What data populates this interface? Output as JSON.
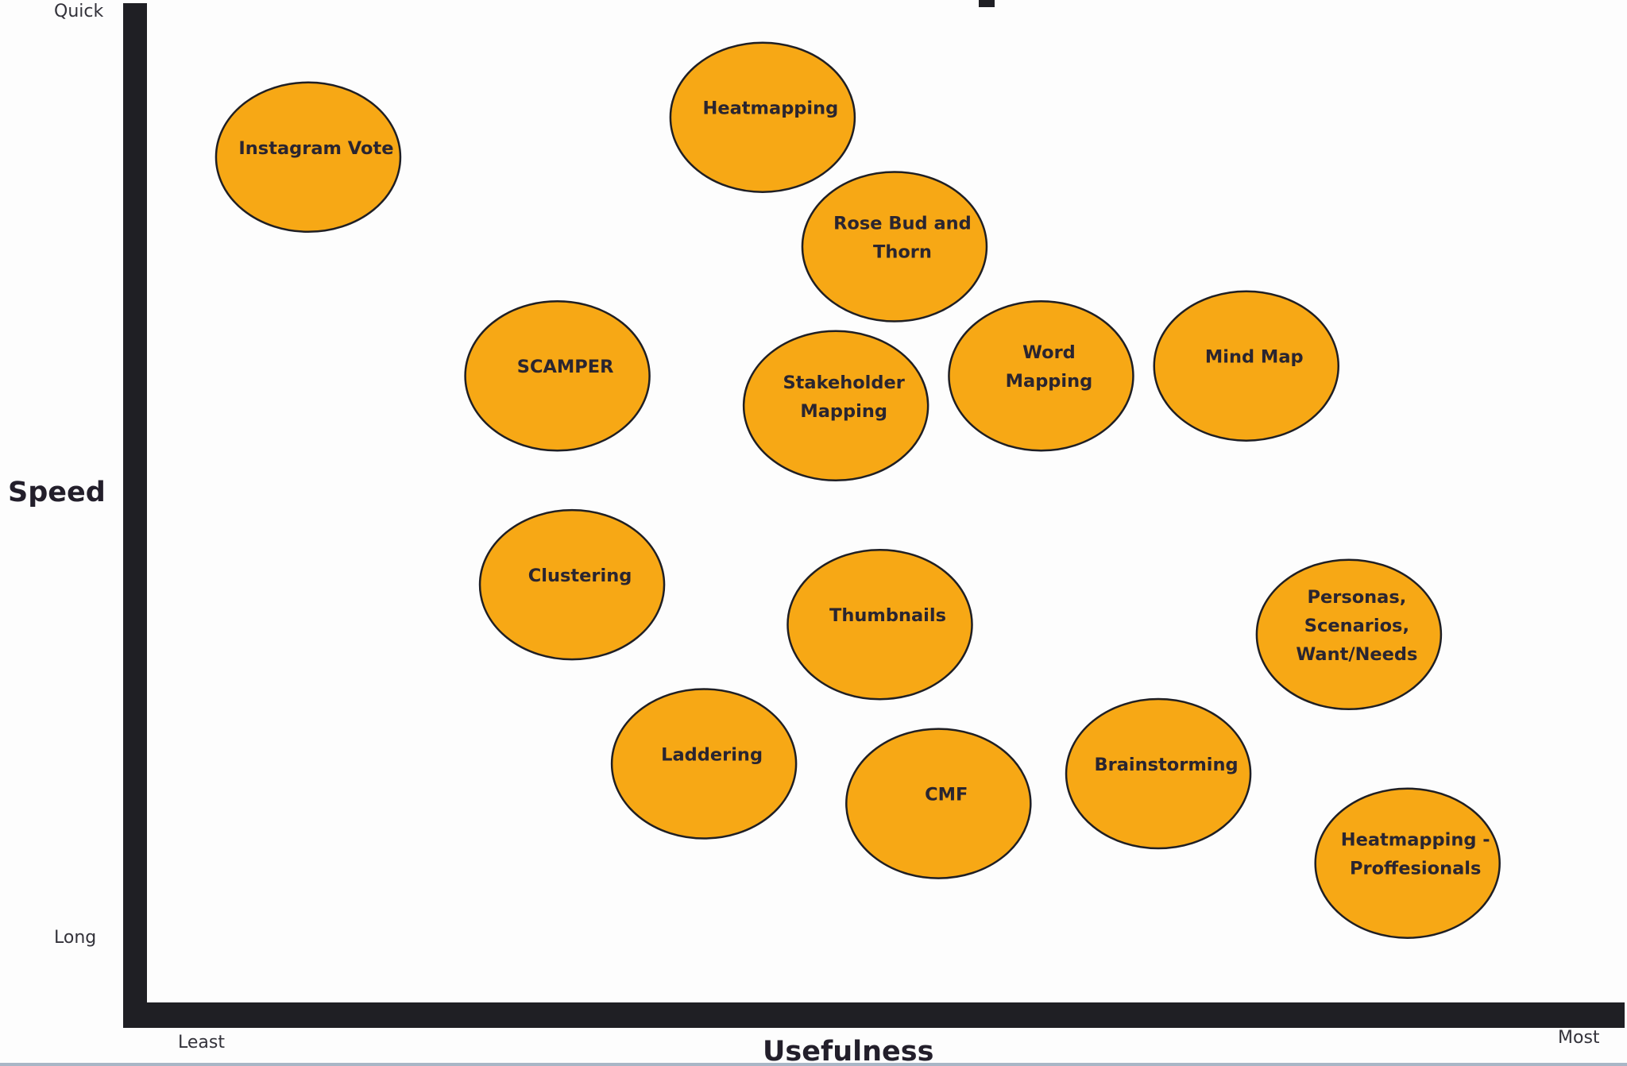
{
  "chart_data": {
    "type": "scatter",
    "xlabel": "Usefulness",
    "ylabel": "Speed",
    "x_ends": {
      "min_label": "Least",
      "max_label": "Most"
    },
    "y_ends": {
      "max_label": "Quick",
      "min_label": "Long"
    },
    "xlim": [
      0,
      100
    ],
    "ylim": [
      0,
      100
    ],
    "colors": {
      "bubble": "#f7a815",
      "outline": "#1f1f24",
      "axis": "#1f1f24",
      "text": "#2a2530"
    },
    "points": [
      {
        "label": [
          "Instagram Vote"
        ],
        "x": 11,
        "y": 85
      },
      {
        "label": [
          "Heatmapping"
        ],
        "x": 42,
        "y": 89
      },
      {
        "label": [
          "Rose Bud and",
          "Thorn"
        ],
        "x": 51,
        "y": 76
      },
      {
        "label": [
          "SCAMPER"
        ],
        "x": 28,
        "y": 63
      },
      {
        "label": [
          "Stakeholder",
          "Mapping"
        ],
        "x": 47,
        "y": 60
      },
      {
        "label": [
          "Word",
          "Mapping"
        ],
        "x": 61,
        "y": 63
      },
      {
        "label": [
          "Mind Map"
        ],
        "x": 75,
        "y": 64
      },
      {
        "label": [
          "Clustering"
        ],
        "x": 29,
        "y": 42
      },
      {
        "label": [
          "Thumbnails"
        ],
        "x": 50,
        "y": 38
      },
      {
        "label": [
          "Personas,",
          "Scenarios,",
          "Want/Needs"
        ],
        "x": 82,
        "y": 37
      },
      {
        "label": [
          "Laddering"
        ],
        "x": 38,
        "y": 24
      },
      {
        "label": [
          "CMF"
        ],
        "x": 54,
        "y": 20
      },
      {
        "label": [
          "Brainstorming"
        ],
        "x": 69,
        "y": 23
      },
      {
        "label": [
          "Heatmapping -",
          "Proffesionals"
        ],
        "x": 86,
        "y": 14
      }
    ]
  }
}
